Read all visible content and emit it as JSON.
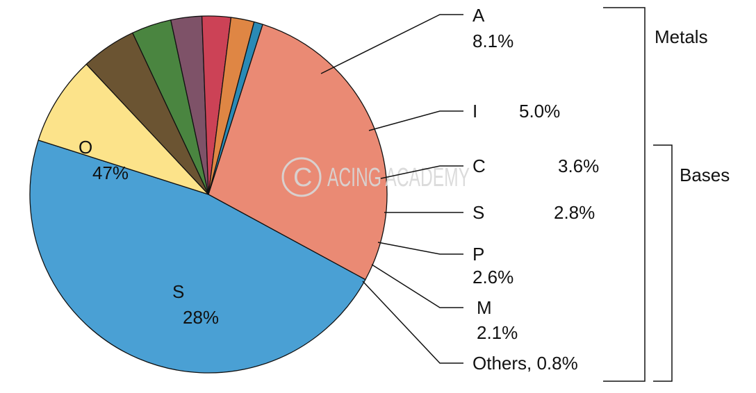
{
  "chart_data": {
    "type": "pie",
    "slices": [
      {
        "label": "O",
        "pct_text": "47%",
        "value": 47,
        "color": "#4aa0d4"
      },
      {
        "label": "A",
        "pct_text": "8.1%",
        "value": 8.1,
        "color": "#fce38a"
      },
      {
        "label": "I",
        "pct_text": "5.0%",
        "value": 5.0,
        "color": "#6b5432"
      },
      {
        "label": "C",
        "pct_text": "3.6%",
        "value": 3.6,
        "color": "#4a8540"
      },
      {
        "label": "S",
        "pct_text": "2.8%",
        "value": 2.8,
        "color": "#7e5268"
      },
      {
        "label": "P",
        "pct_text": "2.6%",
        "value": 2.6,
        "color": "#cc4256"
      },
      {
        "label": "M",
        "pct_text": "2.1%",
        "value": 2.1,
        "color": "#df8644"
      },
      {
        "label": "Others, 0.8%",
        "pct_text": "",
        "value": 0.8,
        "color": "#2a8ab6"
      },
      {
        "label": "S",
        "pct_text": "28%",
        "value": 28,
        "color": "#ea8a74"
      }
    ],
    "groups": [
      {
        "label": "Metals"
      },
      {
        "label": "Bases"
      }
    ],
    "legend": "none"
  },
  "watermark": {
    "text": "ACING ACADEMY"
  }
}
